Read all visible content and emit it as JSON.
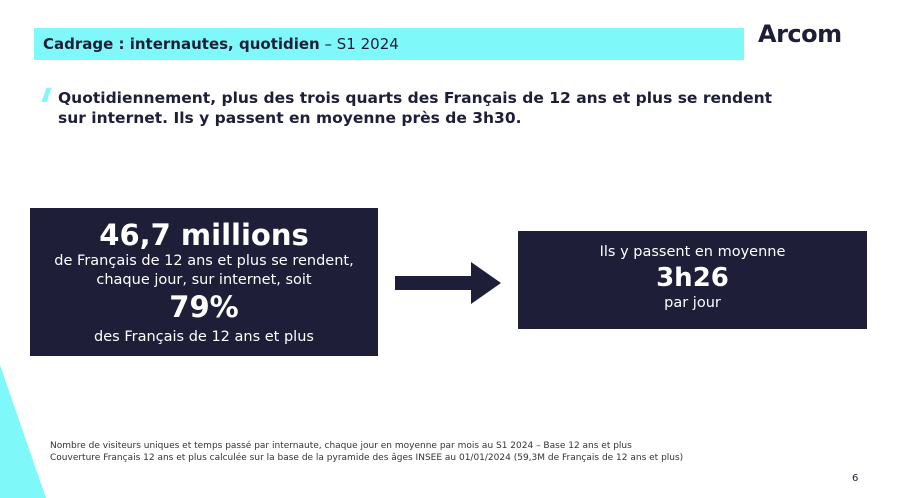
{
  "header": {
    "title_bold": "Cadrage : internautes, quotidien",
    "title_rest": " – S1 2024"
  },
  "logo": "Arcom",
  "headline": "Quotidiennement, plus des trois quarts des Français de 12 ans et plus se rendent sur internet. Ils y passent en moyenne près de 3h30.",
  "left_box": {
    "value1": "46,7 millions",
    "text1": "de Français de 12 ans et plus se rendent,",
    "text2": "chaque jour, sur internet, soit",
    "value2": "79%",
    "text3": "des Français de 12 ans et plus"
  },
  "right_box": {
    "text1": "Ils y passent en moyenne",
    "value": "3h26",
    "text2": "par jour"
  },
  "notes": [
    "Nombre de visiteurs uniques et temps passé par internaute, chaque jour en moyenne par mois au S1 2024 – Base 12 ans et plus",
    "Couverture Français 12 ans et plus calculée sur la base de la pyramide des âges INSEE au 01/01/2024 (59,3M de Français de 12 ans et plus)"
  ],
  "page_number": "6",
  "colors": {
    "accent": "#7ff8fa",
    "navy": "#1e1e38"
  }
}
